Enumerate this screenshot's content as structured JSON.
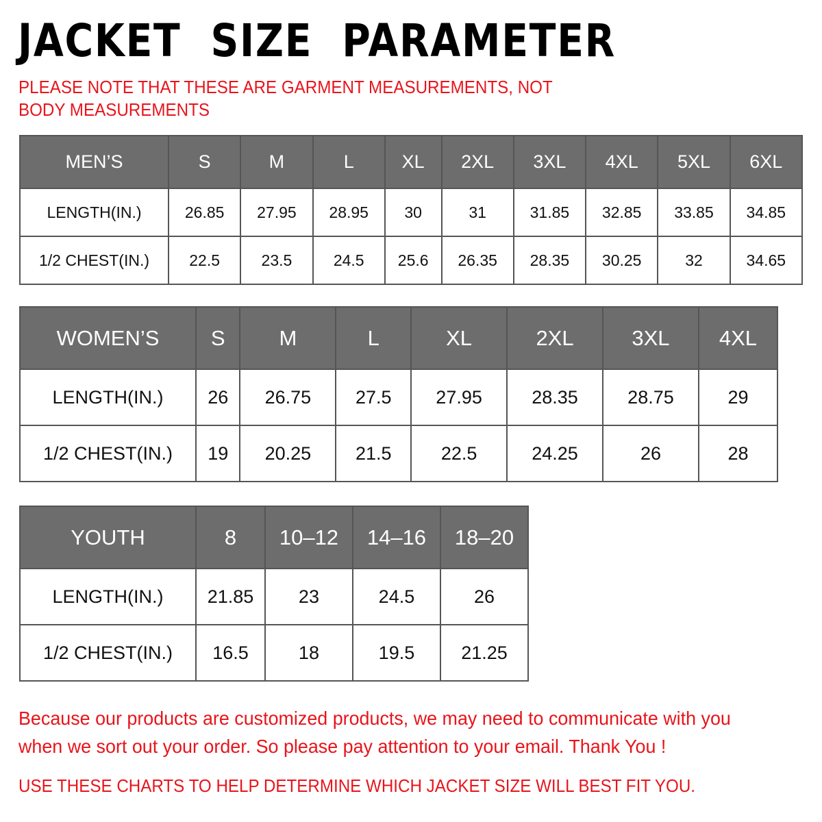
{
  "title": "JACKET  SIZE  PARAMETER",
  "note": "PLEASE NOTE THAT THESE ARE GARMENT MEASUREMENTS, NOT BODY MEASUREMENTS",
  "colors": {
    "header_bg": "#6d6d6d",
    "accent_red": "#e8141b"
  },
  "mens": {
    "header": [
      "MEN’S",
      "S",
      "M",
      "L",
      "XL",
      "2XL",
      "3XL",
      "4XL",
      "5XL",
      "6XL"
    ],
    "rows": [
      [
        "LENGTH(IN.)",
        "26.85",
        "27.95",
        "28.95",
        "30",
        "31",
        "31.85",
        "32.85",
        "33.85",
        "34.85"
      ],
      [
        "1/2 CHEST(IN.)",
        "22.5",
        "23.5",
        "24.5",
        "25.6",
        "26.35",
        "28.35",
        "30.25",
        "32",
        "34.65"
      ]
    ]
  },
  "womens": {
    "header": [
      "WOMEN’S",
      "S",
      "M",
      "L",
      "XL",
      "2XL",
      "3XL",
      "4XL"
    ],
    "rows": [
      [
        "LENGTH(IN.)",
        "26",
        "26.75",
        "27.5",
        "27.95",
        "28.35",
        "28.75",
        "29"
      ],
      [
        "1/2 CHEST(IN.)",
        "19",
        "20.25",
        "21.5",
        "22.5",
        "24.25",
        "26",
        "28"
      ]
    ]
  },
  "youth": {
    "header": [
      "YOUTH",
      "8",
      "10–12",
      "14–16",
      "18–20"
    ],
    "rows": [
      [
        "LENGTH(IN.)",
        "21.85",
        "23",
        "24.5",
        "26"
      ],
      [
        "1/2 CHEST(IN.)",
        "16.5",
        "18",
        "19.5",
        "21.25"
      ]
    ]
  },
  "footer_message": "Because our products are customized products, we may need to communicate with you when we sort out your order. So please pay attention to your email. Thank You !",
  "footer_instruction": "USE THESE CHARTS TO HELP DETERMINE WHICH JACKET SIZE WILL BEST FIT YOU."
}
